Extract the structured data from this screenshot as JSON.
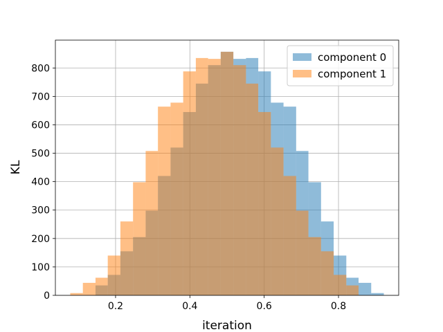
{
  "chart_data": {
    "type": "histogram",
    "xlabel": "iteration",
    "ylabel": "KL",
    "series": [
      {
        "name": "component 0",
        "color": "#1f77b4",
        "opacity": 0.5,
        "bins": [
          0.146,
          0.179,
          0.213,
          0.247,
          0.281,
          0.314,
          0.348,
          0.382,
          0.416,
          0.449,
          0.483,
          0.517,
          0.551,
          0.584,
          0.618,
          0.652,
          0.686,
          0.719,
          0.753,
          0.787,
          0.821,
          0.854,
          0.888,
          0.922
        ],
        "values": [
          35,
          72,
          155,
          205,
          298,
          420,
          520,
          645,
          745,
          810,
          857,
          832,
          835,
          788,
          678,
          664,
          508,
          398,
          260,
          140,
          62,
          44,
          8
        ]
      },
      {
        "name": "component 1",
        "color": "#ff7f0e",
        "opacity": 0.5,
        "bins": [
          0.078,
          0.112,
          0.146,
          0.179,
          0.213,
          0.247,
          0.281,
          0.314,
          0.348,
          0.382,
          0.416,
          0.449,
          0.483,
          0.517,
          0.551,
          0.584,
          0.618,
          0.652,
          0.686,
          0.719,
          0.753,
          0.787,
          0.821,
          0.854
        ],
        "values": [
          8,
          44,
          62,
          140,
          260,
          398,
          508,
          664,
          678,
          788,
          835,
          832,
          857,
          810,
          745,
          645,
          520,
          420,
          298,
          205,
          155,
          72,
          35
        ]
      }
    ],
    "xlim": [
      0.038,
      0.962
    ],
    "xticks": [
      0.2,
      0.4,
      0.6,
      0.8
    ],
    "ylim": [
      0,
      898
    ],
    "yticks": [
      0,
      100,
      200,
      300,
      400,
      500,
      600,
      700,
      800
    ],
    "grid": true,
    "legend": "upper right"
  }
}
